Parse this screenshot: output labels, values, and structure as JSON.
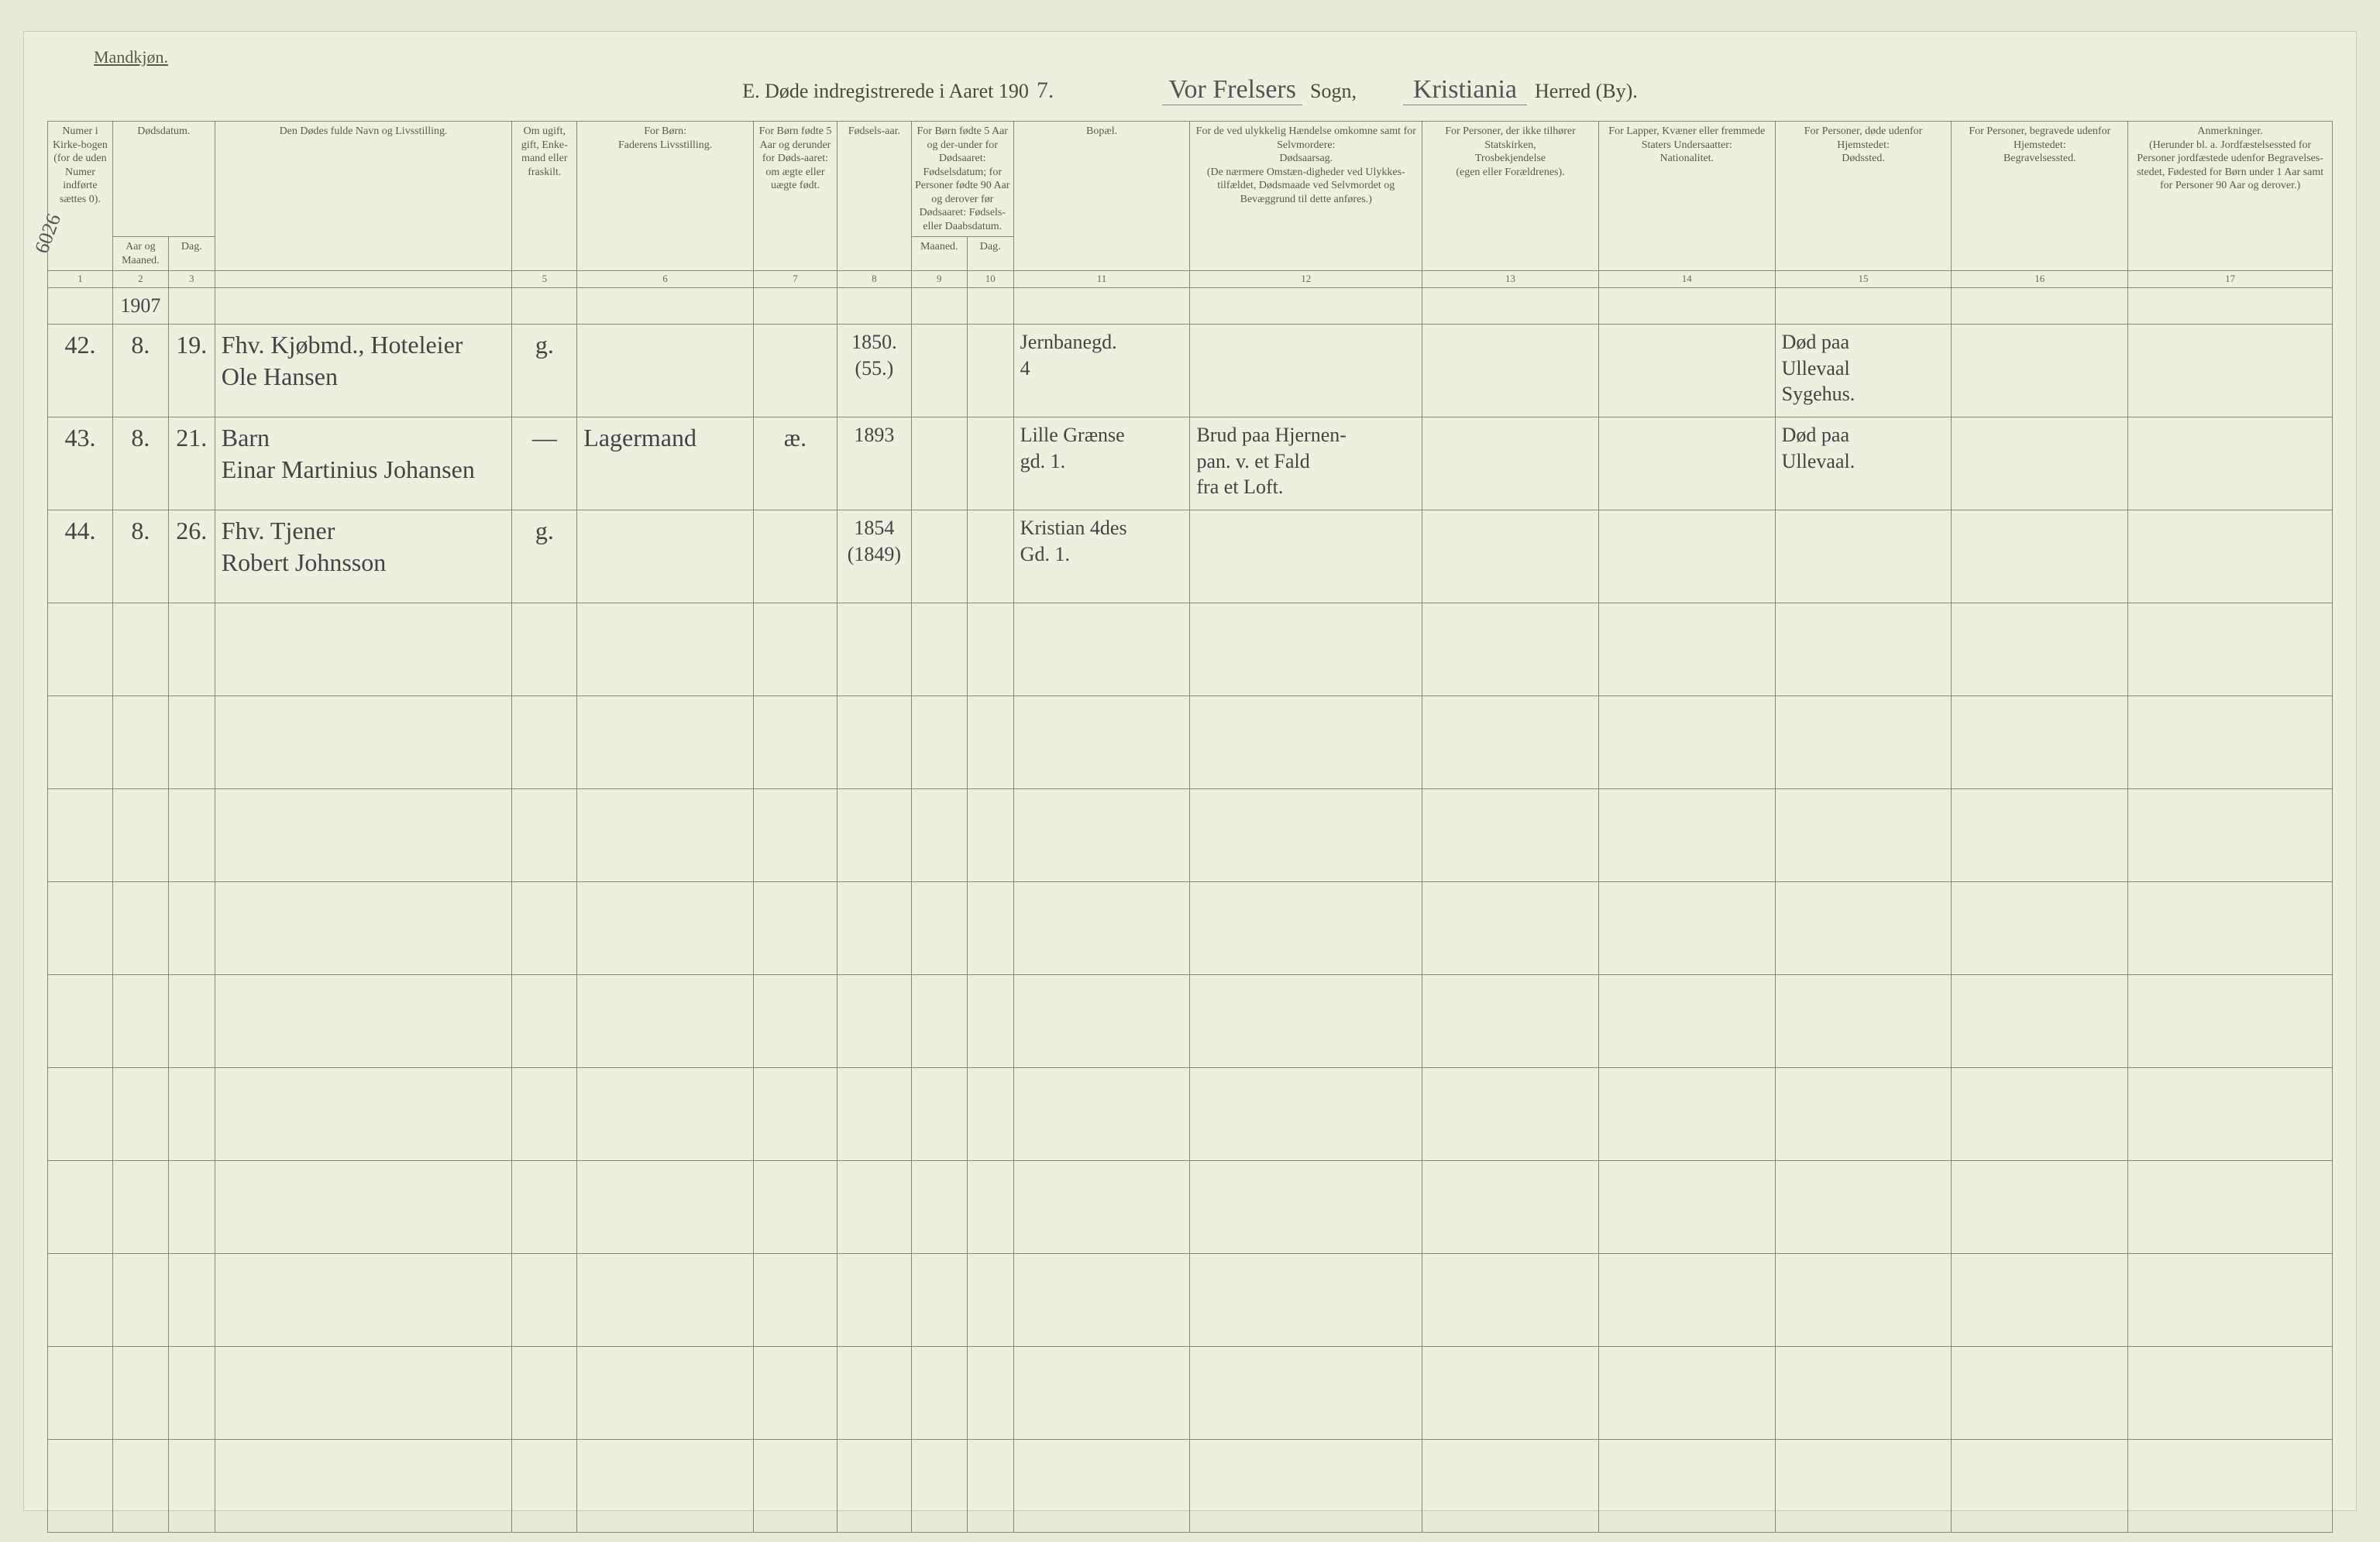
{
  "page": {
    "gender_label": "Mandkjøn.",
    "title_prefix": "E.  Døde indregistrerede i Aaret 190",
    "year_suffix": "7.",
    "sogn_label": "Sogn,",
    "sogn_value": "Vor Frelsers",
    "herred_label": "Herred (By).",
    "herred_value": "Kristiania",
    "margin_note": "6026"
  },
  "columns": {
    "c1": "Numer i Kirke-bogen (for de uden Numer indførte sættes 0).",
    "c2": "Dødsdatum.",
    "c2a": "Aar og Maaned.",
    "c2b": "Dag.",
    "c4": "Den Dødes fulde Navn og Livsstilling.",
    "c5": "Om ugift, gift, Enke-mand eller fraskilt.",
    "c6": "For Børn:\nFaderens Livsstilling.",
    "c7": "For Børn fødte 5 Aar og derunder for Døds-aaret: om ægte eller uægte født.",
    "c8": "Fødsels-aar.",
    "c9_10": "For Børn fødte 5 Aar og der-under for Dødsaaret: Fødselsdatum; for Personer fødte 90 Aar og derover før Dødsaaret: Fødsels- eller Daabsdatum.",
    "c9": "Maaned.",
    "c10": "Dag.",
    "c11": "Bopæl.",
    "c12": "For de ved ulykkelig Hændelse omkomne samt for Selvmordere:\nDødsaarsag.\n(De nærmere Omstæn-digheder ved Ulykkes-tilfældet, Dødsmaade ved Selvmordet og Bevæggrund til dette anføres.)",
    "c13": "For Personer, der ikke tilhører Statskirken,\nTrosbekjendelse\n(egen eller Forældrenes).",
    "c14": "For Lapper, Kvæner eller fremmede Staters Undersaatter:\nNationalitet.",
    "c15": "For Personer, døde udenfor Hjemstedet:\nDødssted.",
    "c16": "For Personer, begravede udenfor Hjemstedet:\nBegravelsessted.",
    "c17": "Anmerkninger.\n(Herunder bl. a. Jordfæstelsessted for Personer jordfæstede udenfor Begravelses-stedet, Fødested for Børn under 1 Aar samt for Personer 90 Aar og derover.)"
  },
  "colnums": [
    "1",
    "2",
    "3",
    "",
    "5",
    "6",
    "7",
    "8",
    "9",
    "10",
    "11",
    "12",
    "13",
    "14",
    "15",
    "16",
    "17"
  ],
  "year_cell": "1907",
  "entries": [
    {
      "num": "42.",
      "month": "8.",
      "day": "19.",
      "name": "Fhv. Kjøbmd., Hoteleier\nOle Hansen",
      "civil": "g.",
      "father": "",
      "legit": "",
      "birth": "1850.\n(55.)",
      "bm": "",
      "bd": "",
      "residence": "Jernbanegd.\n4",
      "cause": "",
      "faith": "",
      "nation": "",
      "deathplace": "Død paa\nUllevaal\nSygehus.",
      "burial": "",
      "remarks": ""
    },
    {
      "num": "43.",
      "month": "8.",
      "day": "21.",
      "name": "Barn\nEinar Martinius Johansen",
      "civil": "—",
      "father": "Lagermand",
      "legit": "æ.",
      "birth": "1893",
      "bm": "",
      "bd": "",
      "residence": "Lille Grænse\ngd. 1.",
      "cause": "Brud paa Hjernen-\npan. v. et Fald\nfra et Loft.",
      "faith": "",
      "nation": "",
      "deathplace": "Død paa\nUllevaal.",
      "burial": "",
      "remarks": ""
    },
    {
      "num": "44.",
      "month": "8.",
      "day": "26.",
      "name": "Fhv. Tjener\nRobert Johnsson",
      "civil": "g.",
      "father": "",
      "legit": "",
      "birth": "1854\n(1849)",
      "bm": "",
      "bd": "",
      "residence": "Kristian 4des\nGd. 1.",
      "cause": "",
      "faith": "",
      "nation": "",
      "deathplace": "",
      "burial": "",
      "remarks": ""
    }
  ],
  "widths": {
    "c1": 70,
    "c2a": 60,
    "c2b": 50,
    "c4": 320,
    "c5": 70,
    "c6": 190,
    "c7": 90,
    "c8": 80,
    "c9": 60,
    "c10": 50,
    "c11": 190,
    "c12": 250,
    "c13": 190,
    "c14": 190,
    "c15": 190,
    "c16": 190,
    "c17": 220
  },
  "empty_rows": 10
}
